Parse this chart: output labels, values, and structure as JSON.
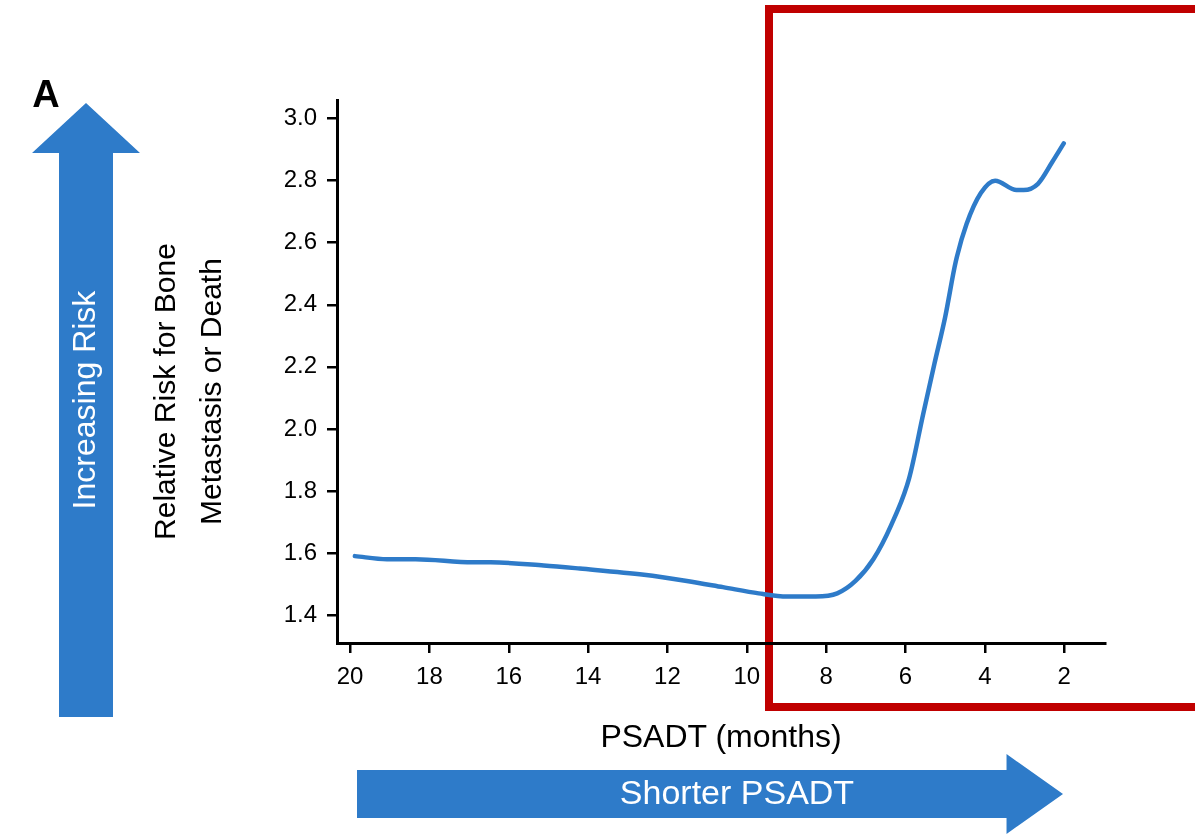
{
  "chart_data": {
    "type": "line",
    "xlabel": "PSADT (months)",
    "ylabel": "Relative Risk for Bone Metastasis or Death",
    "annotations": [
      "A",
      "Increasing Risk",
      "Shorter PSADT"
    ],
    "xlim": [
      20.33,
      0.97
    ],
    "xticks": [
      20,
      18,
      16,
      14,
      12,
      10,
      8,
      6,
      4,
      2
    ],
    "ylim": [
      1.31,
      3.06
    ],
    "yticks": [
      {
        "value": 1.4,
        "label": "1.4"
      },
      {
        "value": 1.6,
        "label": "1.6"
      },
      {
        "value": 1.8,
        "label": "1.8"
      },
      {
        "value": 2,
        "label": "2.0"
      },
      {
        "value": 2.2,
        "label": "2.2"
      },
      {
        "value": 2.4,
        "label": "2.4"
      },
      {
        "value": 2.6,
        "label": "2.6"
      },
      {
        "value": 2.8,
        "label": "2.8"
      },
      {
        "value": 3,
        "label": "3.0"
      }
    ],
    "marker": "none",
    "line_style": "solid",
    "legend": false,
    "series": [
      {
        "color": "#2e7bc9",
        "x": [
          19.88,
          19.07,
          18.35,
          16.91,
          16.46,
          15.12,
          14.21,
          12.59,
          11.51,
          10.6,
          9.7,
          8.98,
          8.26,
          7.72,
          7.26,
          6.81,
          6.36,
          5.91,
          5.55,
          5.27,
          5.0,
          4.73,
          4.46,
          4.1,
          3.74,
          3.2,
          3.02,
          2.66,
          2.3,
          2.01
        ],
        "values": [
          1.59,
          1.58,
          1.58,
          1.57,
          1.57,
          1.56,
          1.55,
          1.53,
          1.51,
          1.49,
          1.47,
          1.46,
          1.46,
          1.47,
          1.51,
          1.58,
          1.69,
          1.84,
          2.05,
          2.21,
          2.36,
          2.54,
          2.66,
          2.76,
          2.8,
          2.77,
          2.77,
          2.79,
          2.86,
          2.92
        ]
      }
    ]
  }
}
